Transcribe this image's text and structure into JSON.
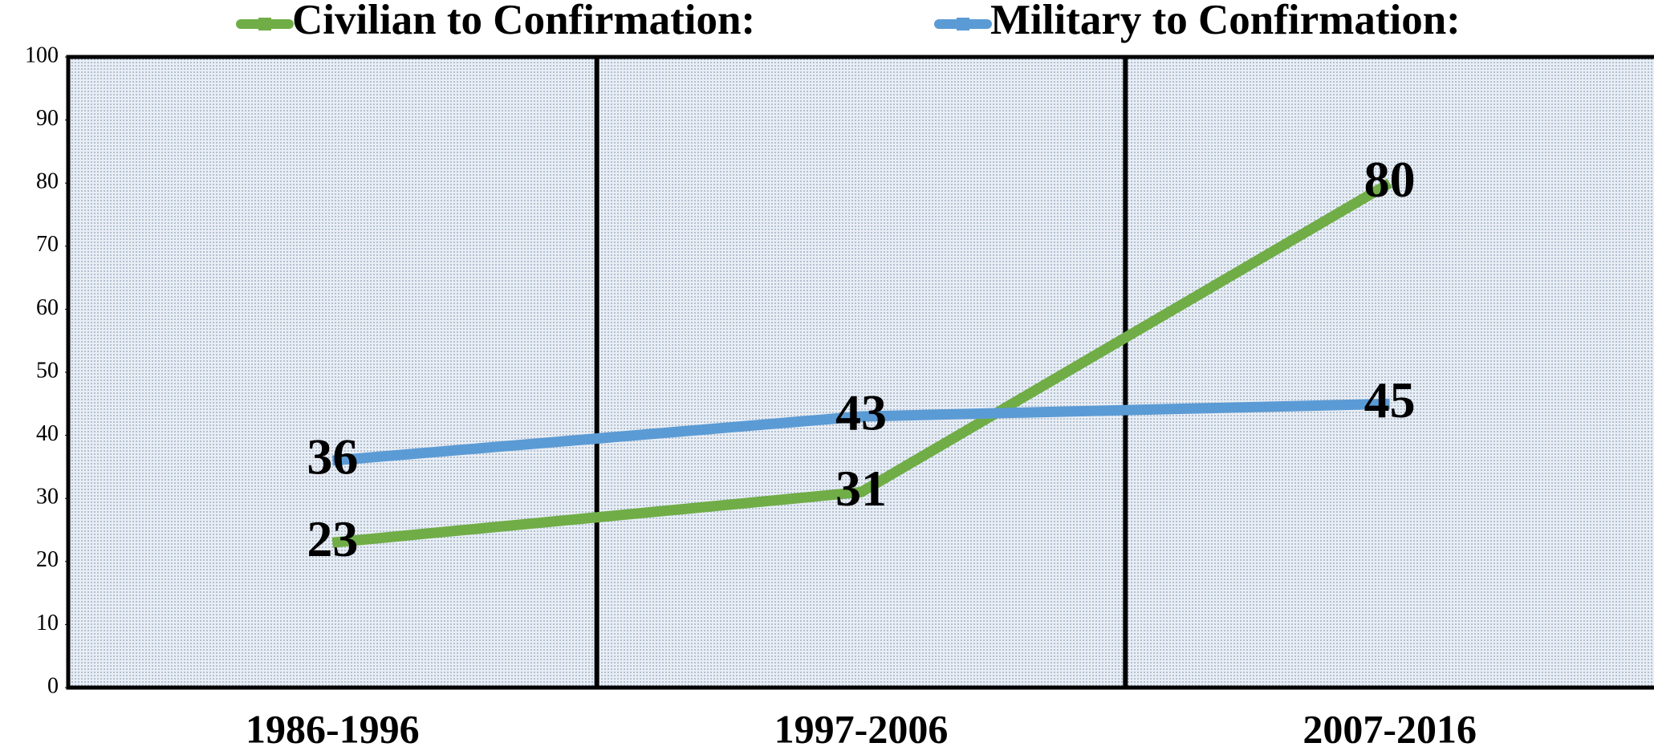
{
  "chart_data": {
    "type": "line",
    "categories": [
      "1986-1996",
      "1997-2006",
      "2007-2016"
    ],
    "series": [
      {
        "name": "Civilian to Confirmation:",
        "color": "#70ad47",
        "values": [
          23,
          31,
          80
        ]
      },
      {
        "name": "Military to Confirmation:",
        "color": "#5b9bd5",
        "values": [
          36,
          43,
          45
        ]
      }
    ],
    "ylim": [
      0,
      100
    ],
    "yticks": [
      0,
      10,
      20,
      30,
      40,
      50,
      60,
      70,
      80,
      90,
      100
    ],
    "legend": "top",
    "data_labels": true
  }
}
